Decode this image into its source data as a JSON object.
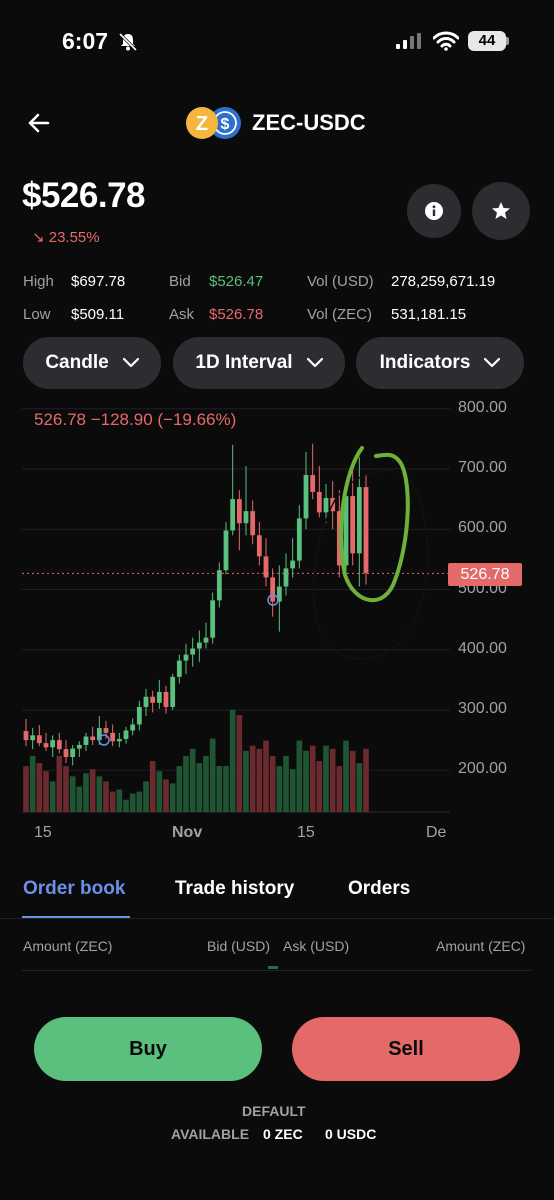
{
  "status_bar": {
    "time": "6:07",
    "battery": "44"
  },
  "header": {
    "title": "ZEC-USDC",
    "base_icon": "zcash-icon",
    "quote_icon": "usdc-icon"
  },
  "price": {
    "value": "$526.78",
    "change": "↘ 23.55%"
  },
  "stats": {
    "high_label": "High",
    "high_value": "$697.78",
    "low_label": "Low",
    "low_value": "$509.11",
    "bid_label": "Bid",
    "bid_value": "$526.47",
    "ask_label": "Ask",
    "ask_value": "$526.78",
    "vol_usd_label": "Vol (USD)",
    "vol_usd_value": "278,259,671.19",
    "vol_zec_label": "Vol (ZEC)",
    "vol_zec_value": "531,181.15"
  },
  "controls": {
    "candle": "Candle",
    "interval": "1D Interval",
    "indicators": "Indicators"
  },
  "chart": {
    "legend": "526.78  −128.90 (−19.66%)",
    "y_ticks": [
      "800.00",
      "700.00",
      "600.00",
      "500.00",
      "400.00",
      "300.00",
      "200.00"
    ],
    "x_ticks": [
      "15",
      "Nov",
      "15",
      "De"
    ],
    "current_price_tag": "526.78",
    "colors": {
      "up": "#5bbf7d",
      "down": "#e46a6a",
      "annotation": "#6fb03a"
    }
  },
  "chart_data": {
    "type": "candlestick",
    "y_range": [
      150,
      820
    ],
    "current_price": 526.78,
    "candles": [
      {
        "o": 265,
        "h": 285,
        "l": 240,
        "c": 250
      },
      {
        "o": 250,
        "h": 270,
        "l": 235,
        "c": 258
      },
      {
        "o": 258,
        "h": 275,
        "l": 240,
        "c": 245
      },
      {
        "o": 245,
        "h": 262,
        "l": 232,
        "c": 238
      },
      {
        "o": 238,
        "h": 258,
        "l": 222,
        "c": 250
      },
      {
        "o": 250,
        "h": 262,
        "l": 228,
        "c": 235
      },
      {
        "o": 235,
        "h": 250,
        "l": 212,
        "c": 222
      },
      {
        "o": 222,
        "h": 242,
        "l": 208,
        "c": 236
      },
      {
        "o": 236,
        "h": 248,
        "l": 222,
        "c": 242
      },
      {
        "o": 242,
        "h": 262,
        "l": 232,
        "c": 256
      },
      {
        "o": 256,
        "h": 272,
        "l": 242,
        "c": 250
      },
      {
        "o": 250,
        "h": 290,
        "l": 242,
        "c": 270
      },
      {
        "o": 270,
        "h": 282,
        "l": 252,
        "c": 262
      },
      {
        "o": 262,
        "h": 276,
        "l": 240,
        "c": 248
      },
      {
        "o": 248,
        "h": 262,
        "l": 238,
        "c": 252
      },
      {
        "o": 252,
        "h": 272,
        "l": 244,
        "c": 266
      },
      {
        "o": 266,
        "h": 286,
        "l": 258,
        "c": 276
      },
      {
        "o": 276,
        "h": 315,
        "l": 266,
        "c": 305
      },
      {
        "o": 305,
        "h": 335,
        "l": 290,
        "c": 322
      },
      {
        "o": 322,
        "h": 332,
        "l": 296,
        "c": 312
      },
      {
        "o": 312,
        "h": 350,
        "l": 302,
        "c": 330
      },
      {
        "o": 330,
        "h": 340,
        "l": 294,
        "c": 305
      },
      {
        "o": 305,
        "h": 360,
        "l": 300,
        "c": 355
      },
      {
        "o": 355,
        "h": 392,
        "l": 344,
        "c": 382
      },
      {
        "o": 382,
        "h": 410,
        "l": 360,
        "c": 392
      },
      {
        "o": 392,
        "h": 420,
        "l": 372,
        "c": 402
      },
      {
        "o": 402,
        "h": 432,
        "l": 380,
        "c": 412
      },
      {
        "o": 412,
        "h": 445,
        "l": 402,
        "c": 420
      },
      {
        "o": 420,
        "h": 495,
        "l": 410,
        "c": 482
      },
      {
        "o": 482,
        "h": 545,
        "l": 470,
        "c": 532
      },
      {
        "o": 532,
        "h": 612,
        "l": 525,
        "c": 598
      },
      {
        "o": 598,
        "h": 740,
        "l": 590,
        "c": 650
      },
      {
        "o": 650,
        "h": 665,
        "l": 565,
        "c": 610
      },
      {
        "o": 610,
        "h": 705,
        "l": 590,
        "c": 630
      },
      {
        "o": 630,
        "h": 648,
        "l": 575,
        "c": 590
      },
      {
        "o": 590,
        "h": 612,
        "l": 540,
        "c": 555
      },
      {
        "o": 555,
        "h": 585,
        "l": 505,
        "c": 520
      },
      {
        "o": 520,
        "h": 535,
        "l": 455,
        "c": 480
      },
      {
        "o": 480,
        "h": 540,
        "l": 430,
        "c": 505
      },
      {
        "o": 505,
        "h": 560,
        "l": 490,
        "c": 535
      },
      {
        "o": 535,
        "h": 585,
        "l": 520,
        "c": 548
      },
      {
        "o": 548,
        "h": 640,
        "l": 535,
        "c": 618
      },
      {
        "o": 618,
        "h": 728,
        "l": 600,
        "c": 690
      },
      {
        "o": 690,
        "h": 742,
        "l": 650,
        "c": 662
      },
      {
        "o": 662,
        "h": 705,
        "l": 620,
        "c": 628
      },
      {
        "o": 628,
        "h": 675,
        "l": 610,
        "c": 652
      },
      {
        "o": 652,
        "h": 680,
        "l": 600,
        "c": 630
      },
      {
        "o": 630,
        "h": 665,
        "l": 520,
        "c": 540
      },
      {
        "o": 540,
        "h": 672,
        "l": 530,
        "c": 655
      },
      {
        "o": 655,
        "h": 700,
        "l": 540,
        "c": 560
      },
      {
        "o": 560,
        "h": 720,
        "l": 505,
        "c": 670
      },
      {
        "o": 670,
        "h": 690,
        "l": 508,
        "c": 527
      }
    ],
    "volumes": [
      0.45,
      0.55,
      0.48,
      0.4,
      0.3,
      0.55,
      0.45,
      0.35,
      0.25,
      0.38,
      0.42,
      0.35,
      0.3,
      0.2,
      0.22,
      0.12,
      0.18,
      0.2,
      0.3,
      0.5,
      0.4,
      0.32,
      0.28,
      0.45,
      0.55,
      0.62,
      0.48,
      0.55,
      0.72,
      0.45,
      0.45,
      1.0,
      0.95,
      0.6,
      0.65,
      0.62,
      0.7,
      0.55,
      0.45,
      0.55,
      0.42,
      0.7,
      0.6,
      0.65,
      0.5,
      0.65,
      0.62,
      0.45,
      0.7,
      0.6,
      0.48,
      0.62
    ]
  },
  "tabs": {
    "order_book": "Order book",
    "trade_history": "Trade history",
    "orders": "Orders"
  },
  "order_book": {
    "amount_zec_left": "Amount (ZEC)",
    "bid_usd": "Bid (USD)",
    "ask_usd": "Ask (USD)",
    "amount_zec_right": "Amount (ZEC)"
  },
  "actions": {
    "buy": "Buy",
    "sell": "Sell"
  },
  "footer": {
    "default": "DEFAULT",
    "available_label": "AVAILABLE",
    "zec_balance": "0 ZEC",
    "usdc_balance": "0 USDC"
  }
}
